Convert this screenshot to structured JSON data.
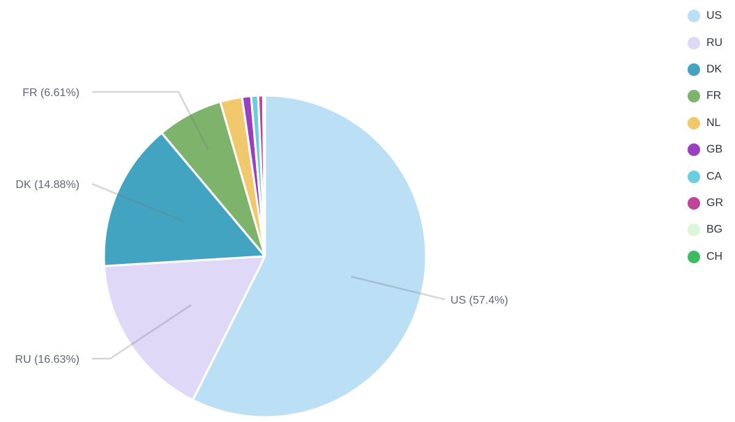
{
  "chart_data": {
    "type": "pie",
    "title": "",
    "start_angle_deg": 0,
    "direction": "clockwise",
    "slices": [
      {
        "name": "US",
        "value": 57.4,
        "color": "#bbdff4",
        "label": "US (57.4%)"
      },
      {
        "name": "RU",
        "value": 16.63,
        "color": "#dfd8f6",
        "label": "RU (16.63%)"
      },
      {
        "name": "DK",
        "value": 14.88,
        "color": "#42a4c1",
        "label": "DK (14.88%)"
      },
      {
        "name": "FR",
        "value": 6.61,
        "color": "#7eb36b",
        "label": "FR (6.61%)"
      },
      {
        "name": "NL",
        "value": 2.2,
        "color": "#f2c86c",
        "label": ""
      },
      {
        "name": "GB",
        "value": 0.9,
        "color": "#9a3fc1",
        "label": ""
      },
      {
        "name": "CA",
        "value": 0.7,
        "color": "#69cfe0",
        "label": ""
      },
      {
        "name": "GR",
        "value": 0.5,
        "color": "#c0449a",
        "label": ""
      },
      {
        "name": "BG",
        "value": 0.1,
        "color": "#dcf6d8",
        "label": ""
      },
      {
        "name": "CH",
        "value": 0.08,
        "color": "#3dbb62",
        "label": ""
      }
    ],
    "legend_position": "right-top",
    "grid": false
  },
  "legend": {
    "items": [
      {
        "label": "US",
        "color": "#bbdff4"
      },
      {
        "label": "RU",
        "color": "#dfd8f6"
      },
      {
        "label": "DK",
        "color": "#42a4c1"
      },
      {
        "label": "FR",
        "color": "#7eb36b"
      },
      {
        "label": "NL",
        "color": "#f2c86c"
      },
      {
        "label": "GB",
        "color": "#9a3fc1"
      },
      {
        "label": "CA",
        "color": "#69cfe0"
      },
      {
        "label": "GR",
        "color": "#c0449a"
      },
      {
        "label": "BG",
        "color": "#dcf6d8"
      },
      {
        "label": "CH",
        "color": "#3dbb62"
      }
    ]
  }
}
